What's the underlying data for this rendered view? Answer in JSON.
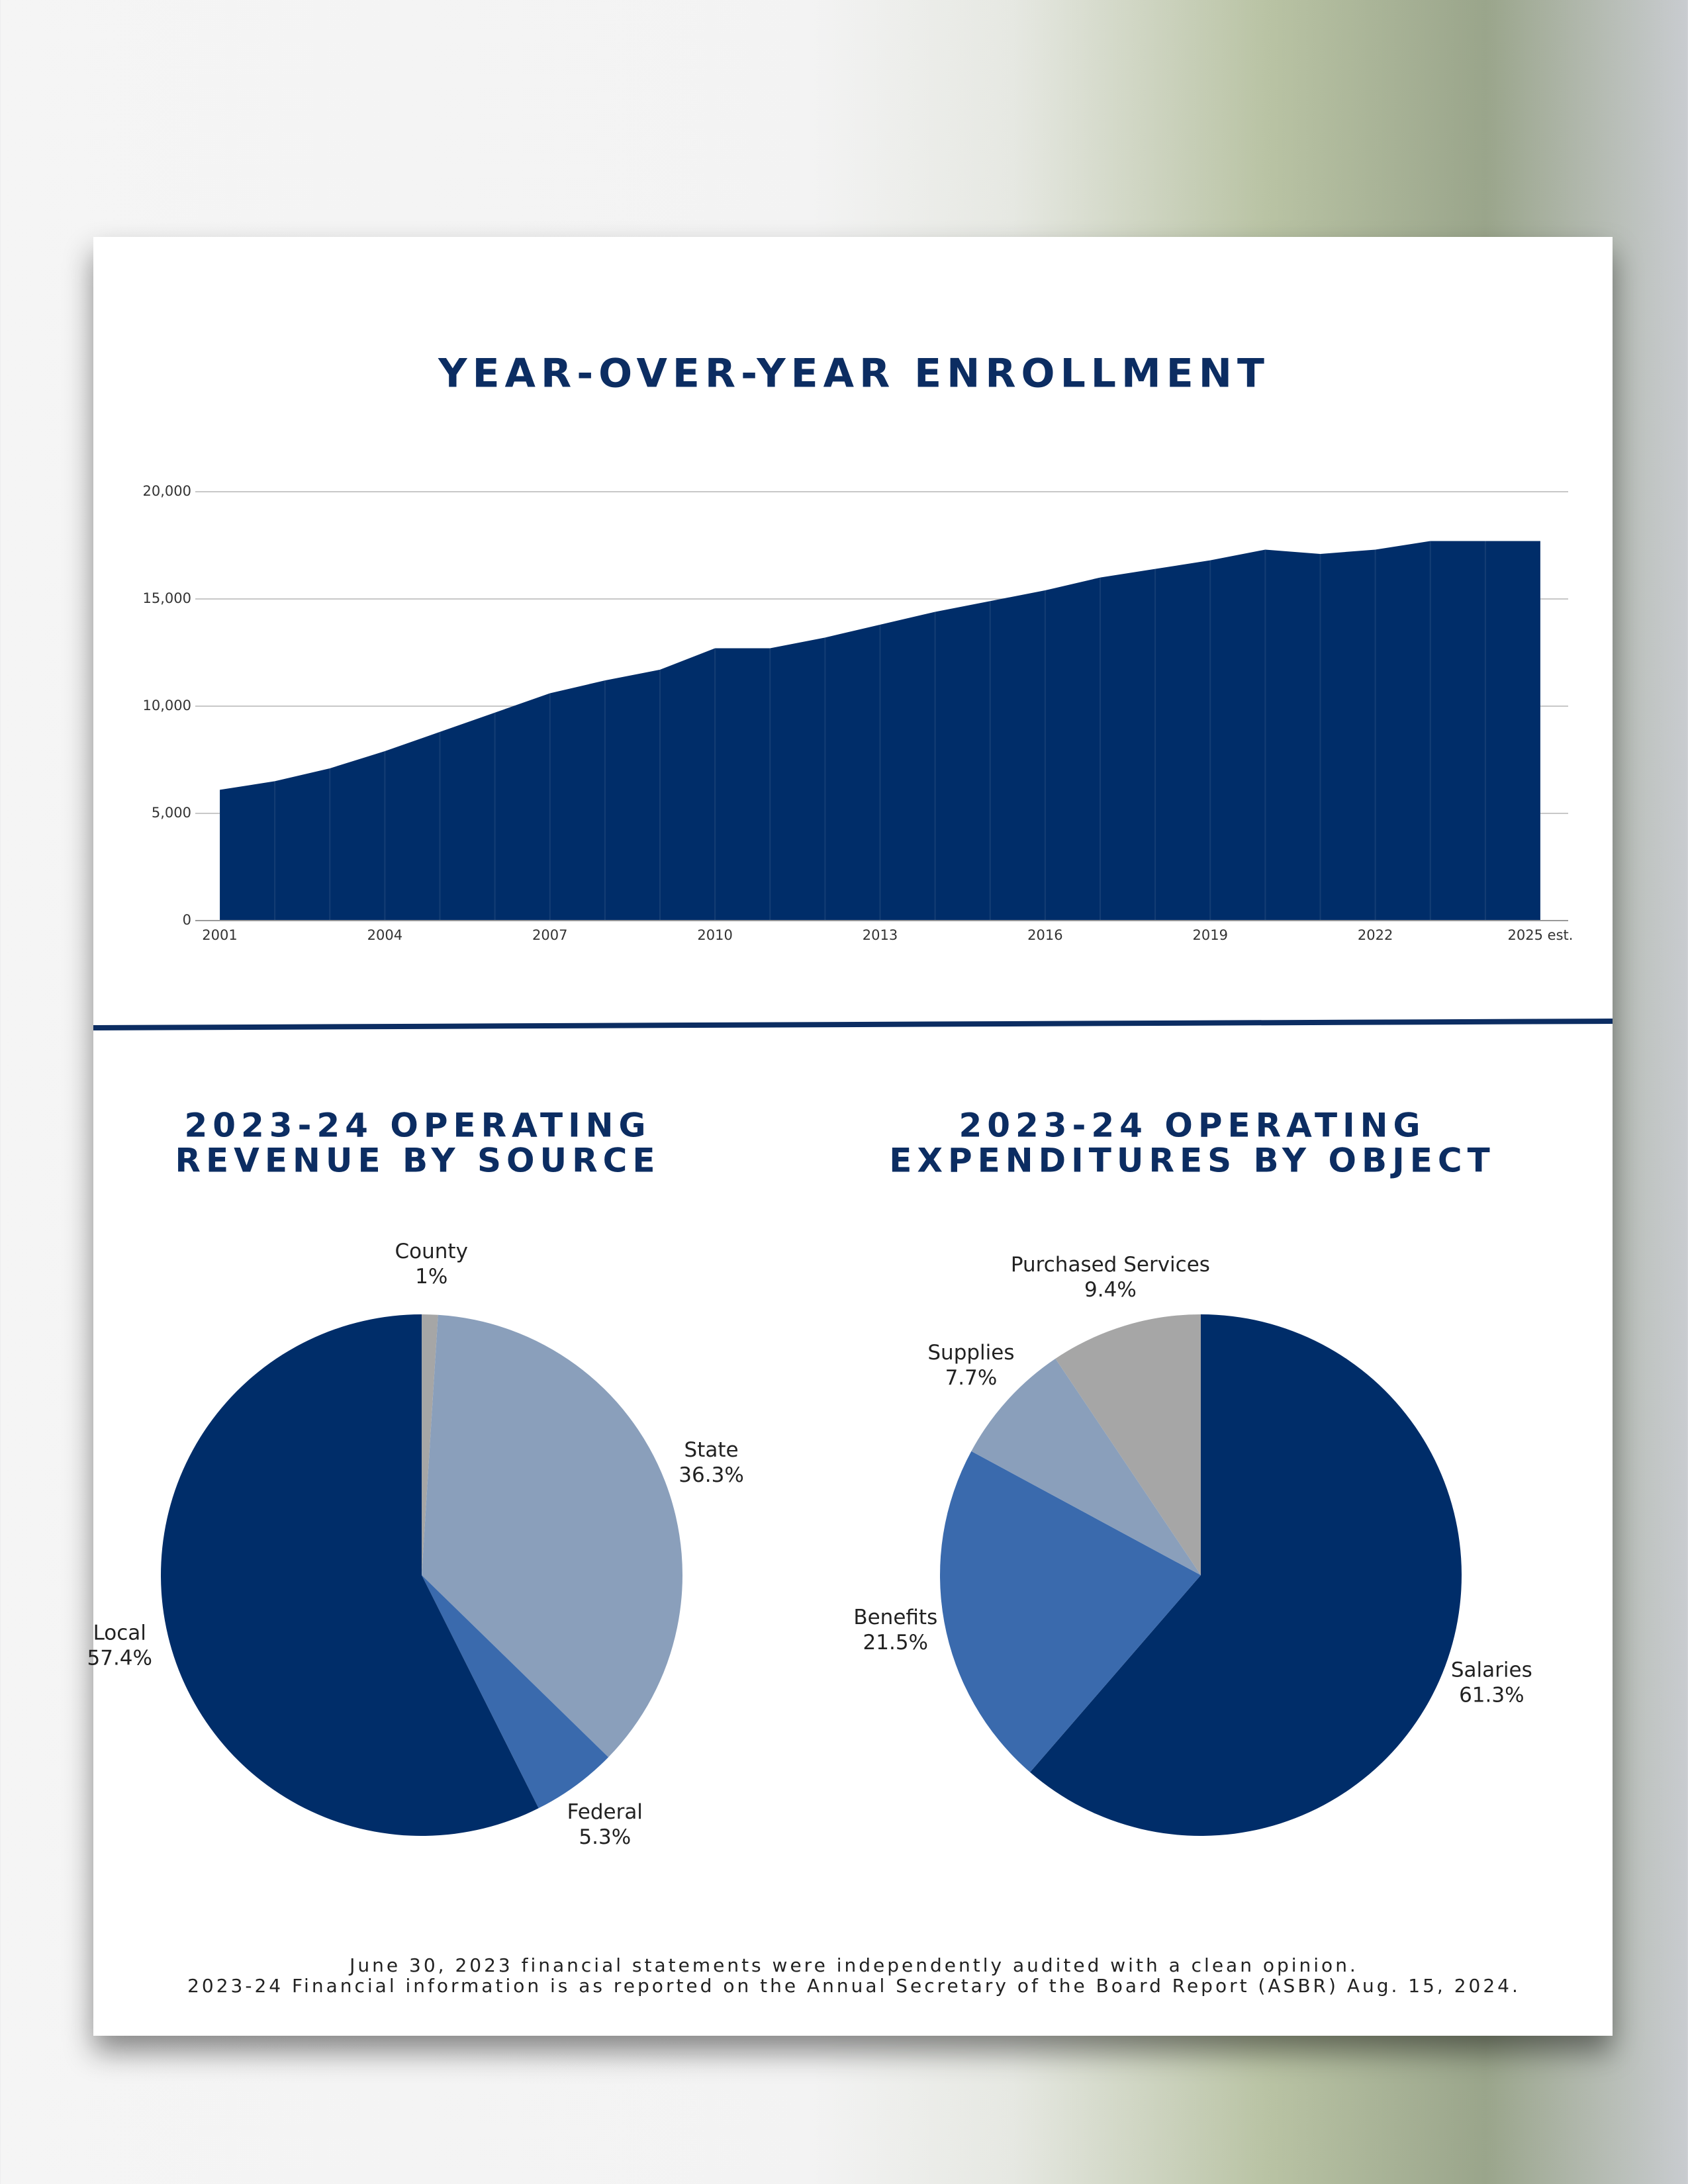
{
  "chart_data": [
    {
      "type": "area",
      "title": "YEAR-OVER-YEAR ENROLLMENT",
      "categories": [
        "2001",
        null,
        null,
        "2004",
        null,
        null,
        "2007",
        null,
        null,
        "2010",
        null,
        null,
        "2013",
        null,
        null,
        "2016",
        null,
        null,
        "2019",
        null,
        null,
        "2022",
        null,
        null,
        "2025 est."
      ],
      "values": [
        6100,
        6500,
        7100,
        7900,
        8800,
        9700,
        10600,
        11200,
        11700,
        12700,
        12700,
        13200,
        13800,
        14400,
        14900,
        15400,
        16000,
        16400,
        16800,
        17300,
        17100,
        17300,
        17700,
        17700,
        17700
      ],
      "color": "#002d69",
      "ylim": [
        0,
        20000
      ],
      "yticks": [
        0,
        {
          "value": 5000,
          "label": "5,000"
        },
        {
          "value": 10000,
          "label": "10,000"
        },
        {
          "value": 15000,
          "label": "15,000"
        },
        {
          "value": 20000,
          "label": "20,000"
        }
      ],
      "grid": true
    },
    {
      "type": "pie",
      "title": [
        "2023-24 OPERATING",
        "REVENUE BY SOURCE"
      ],
      "categories": [
        "County",
        "State",
        "Federal",
        "Local"
      ],
      "values": [
        1,
        36.3,
        5.3,
        57.4
      ],
      "value_labels": [
        "1%",
        "36.3%",
        "5.3%",
        "57.4%"
      ],
      "colors": [
        "#a6a6a6",
        "#8a9fbb",
        "#3a6aad",
        "#002d69"
      ]
    },
    {
      "type": "pie",
      "title": [
        "2023-24 OPERATING",
        "EXPENDITURES BY OBJECT"
      ],
      "categories": [
        "Salaries",
        "Benefits",
        "Supplies",
        "Purchased Services"
      ],
      "values": [
        61.3,
        21.5,
        7.7,
        9.4
      ],
      "value_labels": [
        "61.3%",
        "21.5%",
        "7.7%",
        "9.4%"
      ],
      "colors": [
        "#002d69",
        "#3a6aad",
        "#8a9fbb",
        "#a6a6a6"
      ]
    }
  ],
  "footer": [
    "June 30, 2023 financial statements were independently audited with a clean opinion.",
    "2023-24 Financial information is as reported on the Annual Secretary of the Board Report (ASBR) Aug. 15, 2024."
  ]
}
